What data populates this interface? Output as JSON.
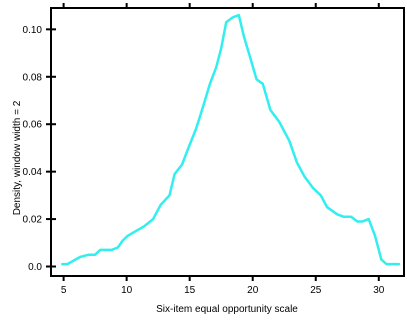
{
  "chart_data": {
    "type": "line",
    "xlabel": "Six-item equal opportunity scale",
    "ylabel": "Density, window width = 2",
    "xlim": [
      4,
      32
    ],
    "ylim": [
      -0.004,
      0.109
    ],
    "x_ticks": [
      5,
      10,
      15,
      20,
      25,
      30
    ],
    "x_tick_labels": [
      "5",
      "10",
      "15",
      "20",
      "25",
      "30"
    ],
    "y_ticks": [
      0.0,
      0.02,
      0.04,
      0.06,
      0.08,
      0.1
    ],
    "y_tick_labels": [
      "0.0",
      "0.02",
      "0.04",
      "0.06",
      "0.08",
      "0.10"
    ],
    "grid": false,
    "series_color": "#33eeee",
    "series": [
      {
        "x": [
          4.9,
          5.3,
          6.3,
          7.0,
          7.5,
          7.9,
          8.8,
          9.3,
          9.7,
          10.1,
          11.4,
          12.1,
          12.7,
          13.4,
          13.8,
          14.4,
          14.9,
          15.5,
          16.1,
          16.6,
          17.1,
          17.5,
          17.9,
          18.4,
          18.9,
          19.3,
          19.7,
          20.3,
          20.8,
          21.4,
          22.1,
          22.9,
          23.5,
          24.1,
          24.8,
          25.4,
          25.9,
          26.7,
          27.2,
          27.8,
          28.3,
          28.7,
          29.2,
          29.7,
          30.2,
          30.6,
          31.1,
          31.6
        ],
        "y": [
          0.001,
          0.001,
          0.004,
          0.005,
          0.005,
          0.007,
          0.007,
          0.008,
          0.011,
          0.013,
          0.017,
          0.02,
          0.026,
          0.03,
          0.039,
          0.043,
          0.05,
          0.058,
          0.068,
          0.077,
          0.084,
          0.092,
          0.103,
          0.105,
          0.106,
          0.097,
          0.09,
          0.079,
          0.077,
          0.066,
          0.061,
          0.053,
          0.044,
          0.038,
          0.033,
          0.03,
          0.025,
          0.022,
          0.021,
          0.021,
          0.019,
          0.019,
          0.02,
          0.013,
          0.003,
          0.001,
          0.001,
          0.001
        ]
      }
    ]
  }
}
